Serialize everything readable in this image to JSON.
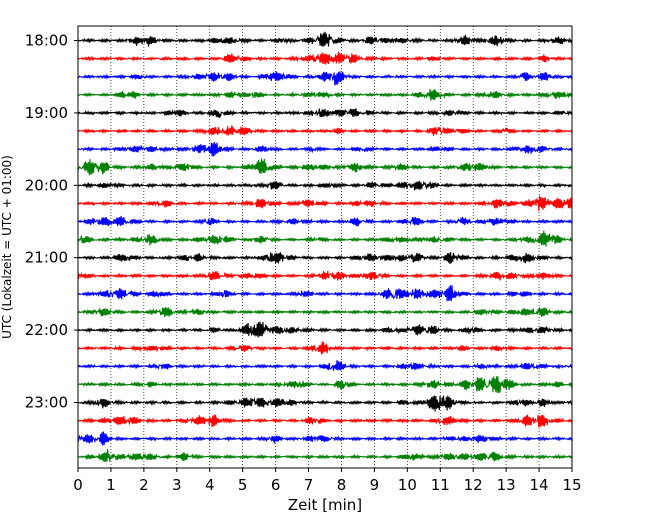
{
  "chart_data": {
    "type": "line",
    "xlabel": "Zeit  [min]",
    "ylabel": "UTC (Lokalzeit = UTC + 01:00)",
    "xlim": [
      0,
      15
    ],
    "x_ticks": [
      "0",
      "1",
      "2",
      "3",
      "4",
      "5",
      "6",
      "7",
      "8",
      "9",
      "10",
      "11",
      "12",
      "13",
      "14",
      "15"
    ],
    "y_ticks": [
      "18:00",
      "19:00",
      "20:00",
      "21:00",
      "22:00",
      "23:00"
    ],
    "start_time": "18:00",
    "row_minutes": 15,
    "grid": "vertical dotted lines at each minute",
    "trace_colors": [
      "#000000",
      "#ff0000",
      "#0000ff",
      "#008000"
    ],
    "series": [
      {
        "values": []
      },
      {
        "values": []
      },
      {
        "values": []
      },
      {
        "values": []
      },
      {
        "values": []
      },
      {
        "values": []
      },
      {
        "values": []
      },
      {
        "values": []
      },
      {
        "values": []
      },
      {
        "values": []
      },
      {
        "values": []
      },
      {
        "values": []
      },
      {
        "values": []
      },
      {
        "values": []
      },
      {
        "values": []
      },
      {
        "values": []
      },
      {
        "values": []
      },
      {
        "values": []
      },
      {
        "values": []
      },
      {
        "values": []
      },
      {
        "values": []
      },
      {
        "values": []
      },
      {
        "values": []
      },
      {
        "values": []
      }
    ]
  }
}
